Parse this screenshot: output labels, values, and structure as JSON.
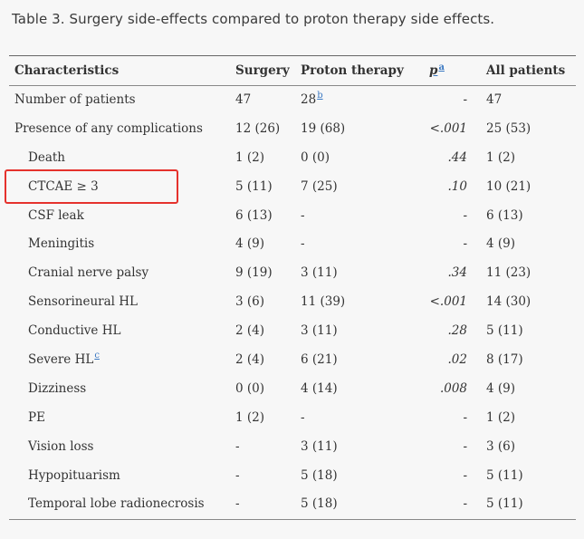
{
  "caption": "Table 3. Surgery side-effects compared to proton therapy side effects.",
  "headers": {
    "characteristics": "Characteristics",
    "surgery": "Surgery",
    "proton": "Proton therapy",
    "p_letter": "p",
    "p_sup": "a",
    "all": "All patients"
  },
  "rows": [
    {
      "label": "Number of patients",
      "sup": "",
      "surgery": "47",
      "proton": "28",
      "proton_sup": "b",
      "p": "-",
      "all": "47"
    },
    {
      "label": "Presence of any complications",
      "sup": "",
      "surgery": "12 (26)",
      "proton": "19 (68)",
      "proton_sup": "",
      "p": "<.001",
      "all": "25 (53)"
    },
    {
      "label": "Death",
      "sup": "",
      "surgery": "1 (2)",
      "proton": "0 (0)",
      "proton_sup": "",
      "p": ".44",
      "all": "1 (2)"
    },
    {
      "label": "CTCAE ≥ 3",
      "sup": "",
      "surgery": "5 (11)",
      "proton": "7 (25)",
      "proton_sup": "",
      "p": ".10",
      "all": "10 (21)"
    },
    {
      "label": "CSF leak",
      "sup": "",
      "surgery": "6 (13)",
      "proton": "-",
      "proton_sup": "",
      "p": "-",
      "all": "6 (13)"
    },
    {
      "label": "Meningitis",
      "sup": "",
      "surgery": "4 (9)",
      "proton": "-",
      "proton_sup": "",
      "p": "-",
      "all": "4 (9)"
    },
    {
      "label": "Cranial nerve palsy",
      "sup": "",
      "surgery": "9 (19)",
      "proton": "3 (11)",
      "proton_sup": "",
      "p": ".34",
      "all": "11 (23)"
    },
    {
      "label": "Sensorineural HL",
      "sup": "",
      "surgery": "3 (6)",
      "proton": "11 (39)",
      "proton_sup": "",
      "p": "<.001",
      "all": "14 (30)"
    },
    {
      "label": "Conductive HL",
      "sup": "",
      "surgery": "2 (4)",
      "proton": "3 (11)",
      "proton_sup": "",
      "p": ".28",
      "all": "5 (11)"
    },
    {
      "label": "Severe HL",
      "sup": "c",
      "surgery": "2 (4)",
      "proton": "6 (21)",
      "proton_sup": "",
      "p": ".02",
      "all": "8 (17)"
    },
    {
      "label": "Dizziness",
      "sup": "",
      "surgery": "0 (0)",
      "proton": "4 (14)",
      "proton_sup": "",
      "p": ".008",
      "all": "4 (9)"
    },
    {
      "label": "PE",
      "sup": "",
      "surgery": "1 (2)",
      "proton": "-",
      "proton_sup": "",
      "p": "-",
      "all": "1 (2)"
    },
    {
      "label": "Vision loss",
      "sup": "",
      "surgery": "-",
      "proton": "3 (11)",
      "proton_sup": "",
      "p": "-",
      "all": "3 (6)"
    },
    {
      "label": "Hypopituarism",
      "sup": "",
      "surgery": "-",
      "proton": "5 (18)",
      "proton_sup": "",
      "p": "-",
      "all": "5 (11)"
    },
    {
      "label": "Temporal lobe radionecrosis",
      "sup": "",
      "surgery": "-",
      "proton": "5 (18)",
      "proton_sup": "",
      "p": "-",
      "all": "5 (11)"
    }
  ],
  "colors": {
    "highlight_box": "#e5322d",
    "footnote_link": "#3a78c2"
  }
}
